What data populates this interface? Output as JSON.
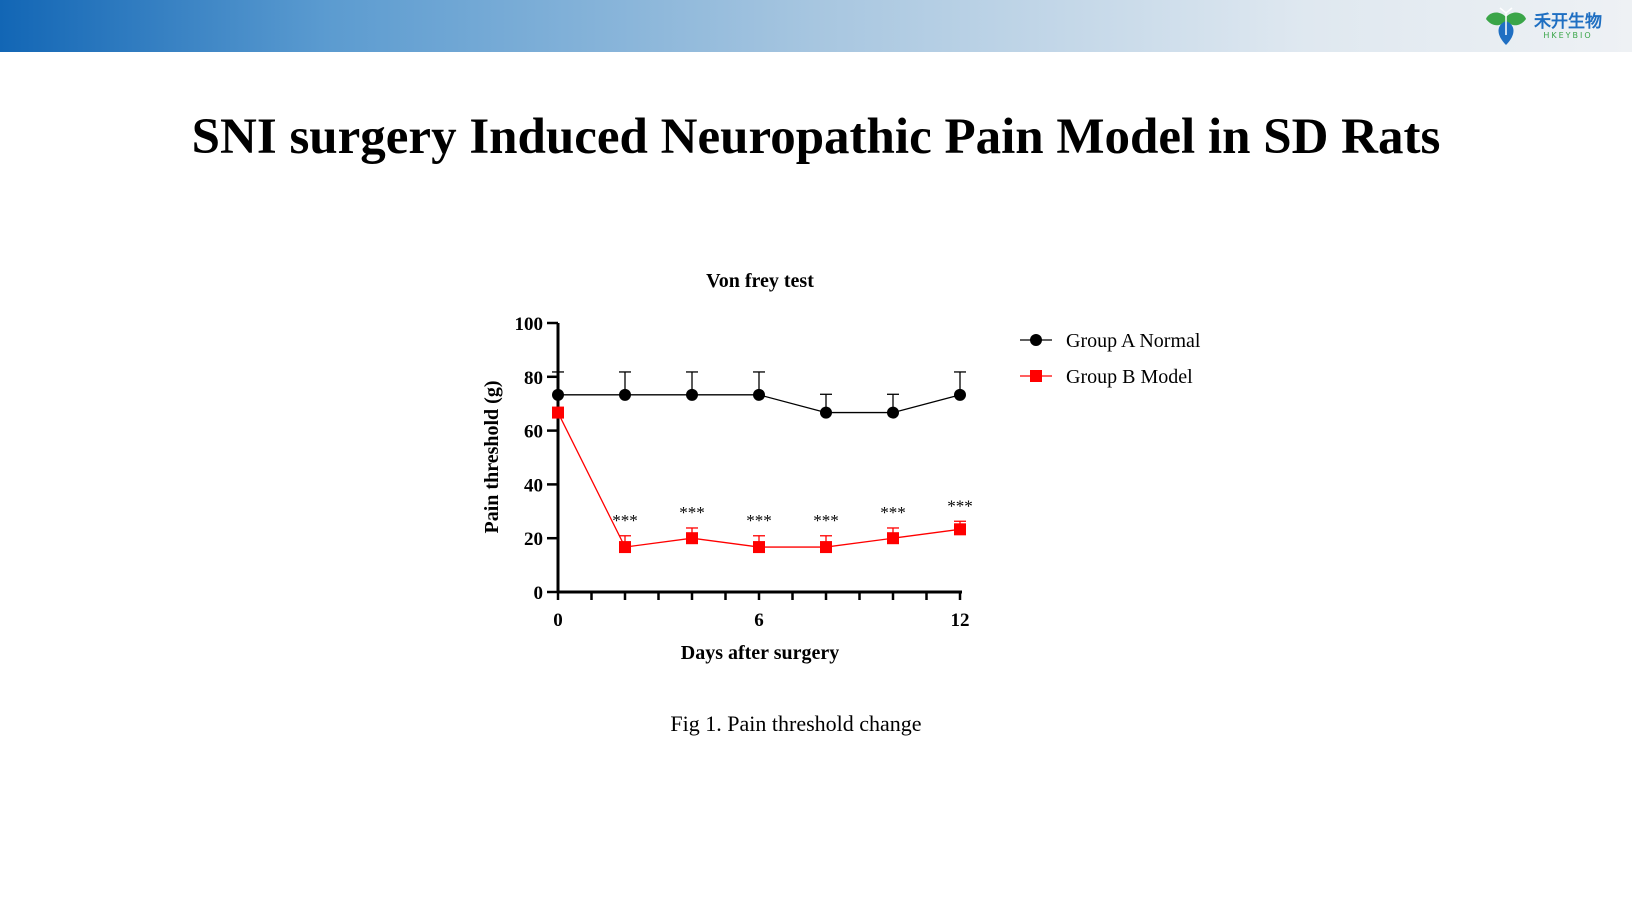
{
  "header": {
    "logo_text_cn": "禾开生物",
    "logo_text_en": "HKEYBIO"
  },
  "page_title": "SNI surgery Induced Neuropathic Pain Model in SD Rats",
  "caption": "Fig 1. Pain threshold change",
  "chart_data": {
    "type": "line",
    "title": "Von frey test",
    "xlabel": "Days after surgery",
    "ylabel": "Pain threshold (g)",
    "xlim": [
      0,
      12
    ],
    "ylim": [
      0,
      100
    ],
    "xticks": [
      0,
      6,
      12
    ],
    "yticks": [
      0,
      20,
      40,
      60,
      80,
      100
    ],
    "x": [
      0,
      2,
      4,
      6,
      8,
      10,
      12
    ],
    "legend_position": "right",
    "series": [
      {
        "name": "Group A  Normal",
        "color": "#000000",
        "marker": "circle",
        "values": [
          73.3,
          73.3,
          73.3,
          73.3,
          66.7,
          66.7,
          73.3
        ],
        "error": [
          8.5,
          8.5,
          8.5,
          8.5,
          6.8,
          6.8,
          8.5
        ]
      },
      {
        "name": "Group B Model",
        "color": "#ff0000",
        "marker": "square",
        "values": [
          66.7,
          16.7,
          20,
          16.7,
          16.7,
          20,
          23.3
        ],
        "error": [
          0,
          4.2,
          3.8,
          4.2,
          4.2,
          3.8,
          3.0
        ]
      }
    ],
    "annotations": [
      {
        "x": 2,
        "text": "***"
      },
      {
        "x": 4,
        "text": "***"
      },
      {
        "x": 6,
        "text": "***"
      },
      {
        "x": 8,
        "text": "***"
      },
      {
        "x": 10,
        "text": "***"
      },
      {
        "x": 12,
        "text": "***"
      }
    ]
  }
}
